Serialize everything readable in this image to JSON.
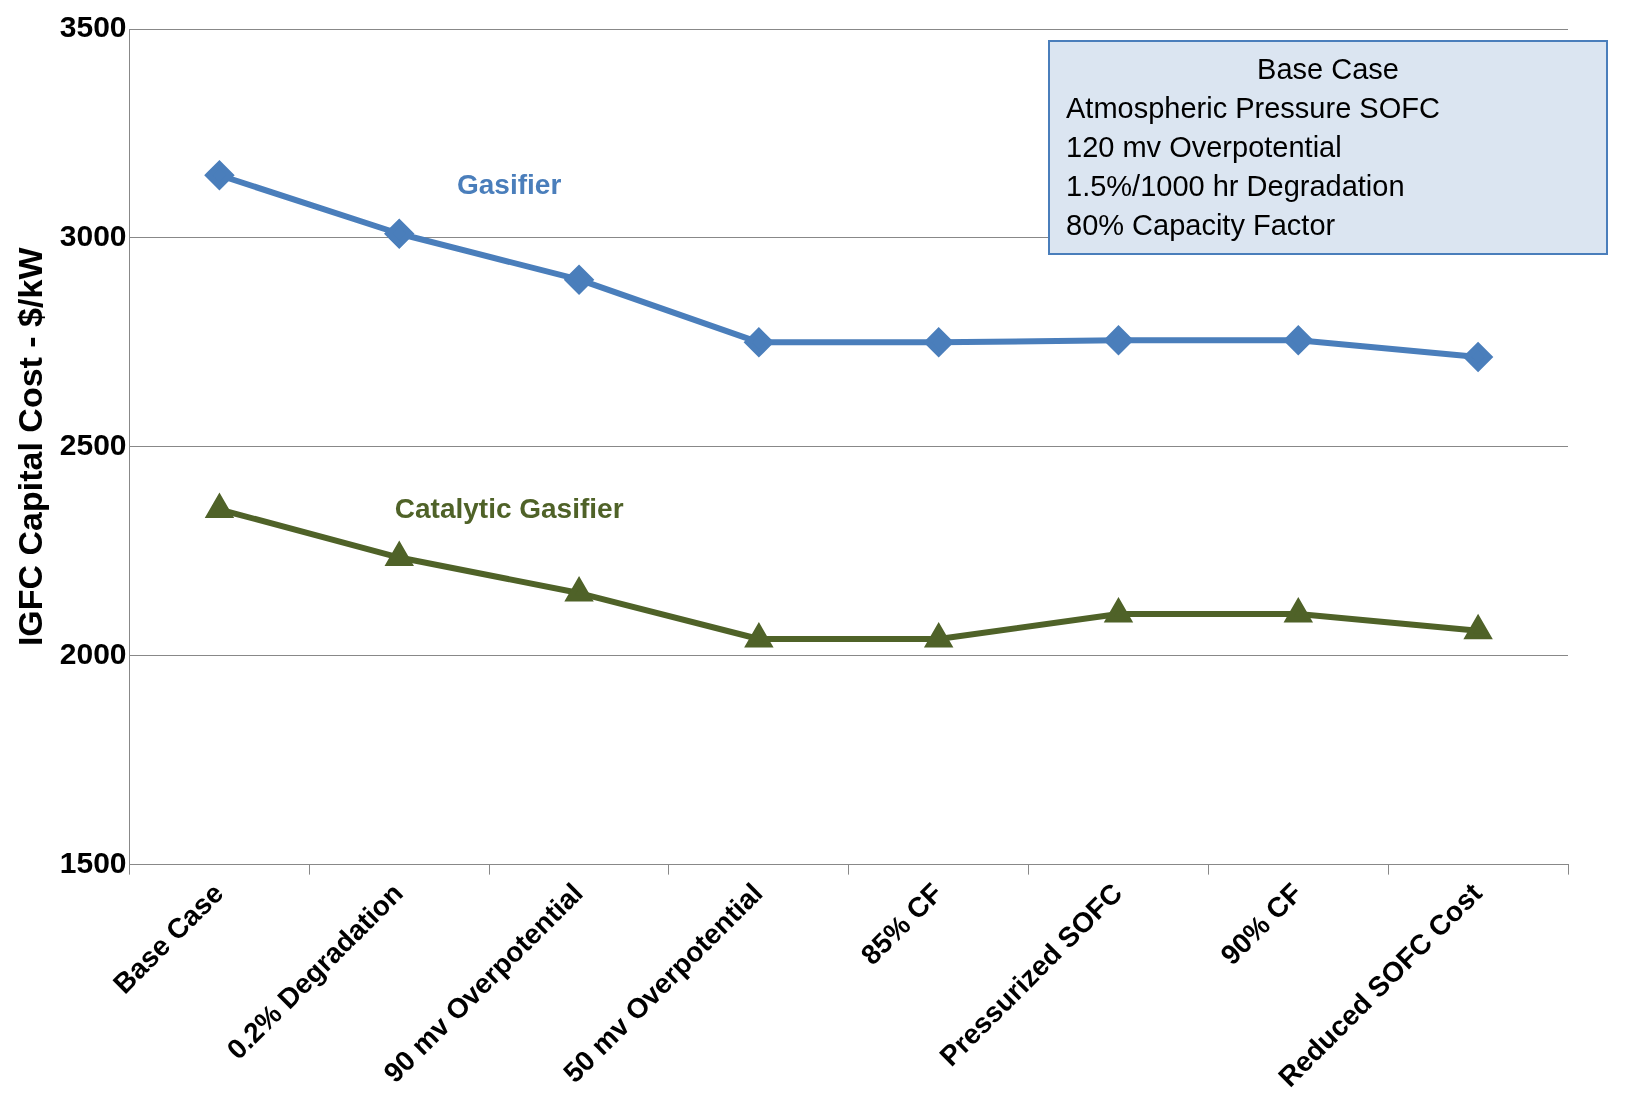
{
  "chart_data": {
    "type": "line",
    "ylabel": "IGFC Capital Cost - $/kW",
    "categories": [
      "Base Case",
      "0.2% Degradation",
      "90 mv Overpotential",
      "50 mv Overpotential",
      "85% CF",
      "Pressurized SOFC",
      "90% CF",
      "Reduced SOFC Cost"
    ],
    "series": [
      {
        "name": "Gasifier",
        "color": "#4a7ebb",
        "marker": "diamond",
        "values": [
          3150,
          3010,
          2900,
          2750,
          2750,
          2755,
          2755,
          2715
        ]
      },
      {
        "name": "Catalytic Gasifier",
        "color": "#4f6228",
        "marker": "triangle",
        "values": [
          2350,
          2235,
          2150,
          2040,
          2040,
          2100,
          2100,
          2060
        ]
      }
    ],
    "ylim": [
      1500,
      3500
    ],
    "yticks": [
      1500,
      2000,
      2500,
      3000,
      3500
    ],
    "grid": "y",
    "legend": false,
    "annotations": [
      "Base Case",
      "Atmospheric Pressure SOFC",
      "120 mv Overpotential",
      "1.5%/1000 hr Degradation",
      "80% Capacity Factor"
    ]
  }
}
